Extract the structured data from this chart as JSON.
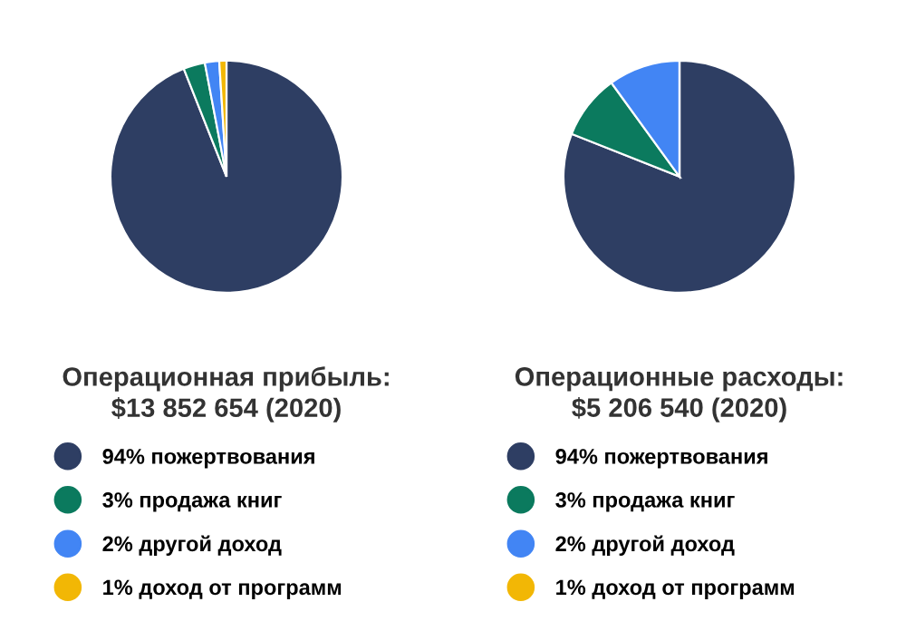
{
  "chart_data": [
    {
      "type": "pie",
      "title": "Операционная прибыль:\n$13 852 654 (2020)",
      "categories": [
        "94% пожертвования",
        "3% продажа книг",
        "2% другой доход",
        "1% доход от программ"
      ],
      "values": [
        94,
        3,
        2,
        1
      ],
      "colors": [
        "#2e3e63",
        "#0b7a5e",
        "#4285f4",
        "#f2b705"
      ],
      "legend": "bottom"
    },
    {
      "type": "pie",
      "title": "Операционные расходы:\n$5 206 540 (2020)",
      "categories": [
        "94% пожертвования",
        "3% продажа книг",
        "2% другой доход",
        "1% доход от программ"
      ],
      "values": [
        81,
        9,
        10,
        0
      ],
      "colors": [
        "#2e3e63",
        "#0b7a5e",
        "#4285f4",
        "#f2b705"
      ],
      "legend": "bottom"
    }
  ]
}
